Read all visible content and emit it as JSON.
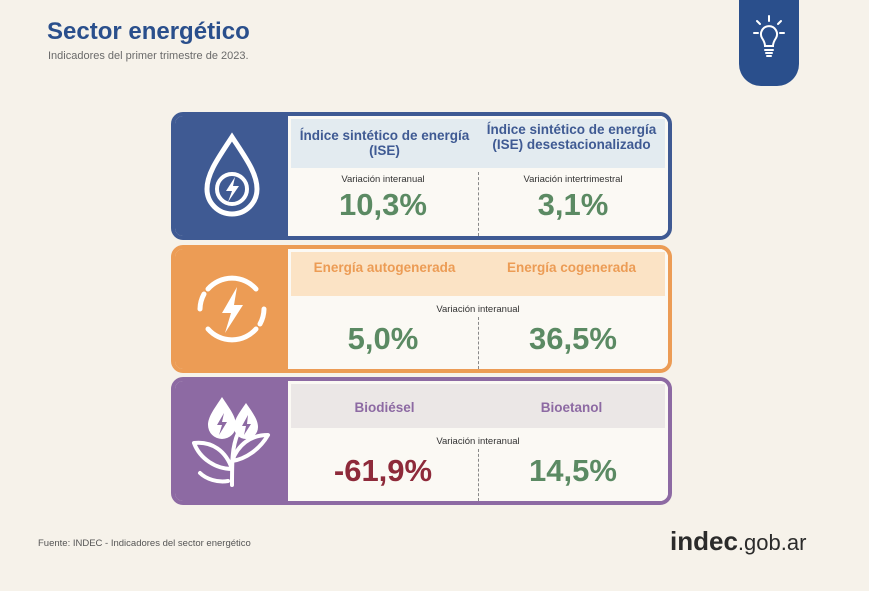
{
  "header": {
    "title": "Sector energético",
    "subtitle": "Indicadores del primer trimestre de 2023."
  },
  "colors": {
    "blue": "#3f5a93",
    "orange": "#ec9c55",
    "purple": "#8d6aa3",
    "positive": "#5b8a63",
    "negative": "#8e2a3a"
  },
  "cards": {
    "ise": {
      "icon": "water-drop-lightning-icon",
      "left_title": "Índice sintético de energía (ISE)",
      "right_title": "Índice sintético de energía (ISE) desestacionalizado",
      "left_label": "Variación interanual",
      "right_label": "Variación intertrimestral",
      "left_value": "10,3%",
      "right_value": "3,1%"
    },
    "energy": {
      "icon": "circular-lightning-icon",
      "left_title": "Energía autogenerada",
      "right_title": "Energía cogenerada",
      "label": "Variación interanual",
      "left_value": "5,0%",
      "right_value": "36,5%"
    },
    "bio": {
      "icon": "plant-drops-lightning-icon",
      "left_title": "Biodiésel",
      "right_title": "Bioetanol",
      "label": "Variación interanual",
      "left_value": "-61,9%",
      "right_value": "14,5%"
    }
  },
  "footer": {
    "source": "Fuente: INDEC - Indicadores del sector energético",
    "logo_bold": "indec",
    "logo_rest": ".gob.ar"
  }
}
